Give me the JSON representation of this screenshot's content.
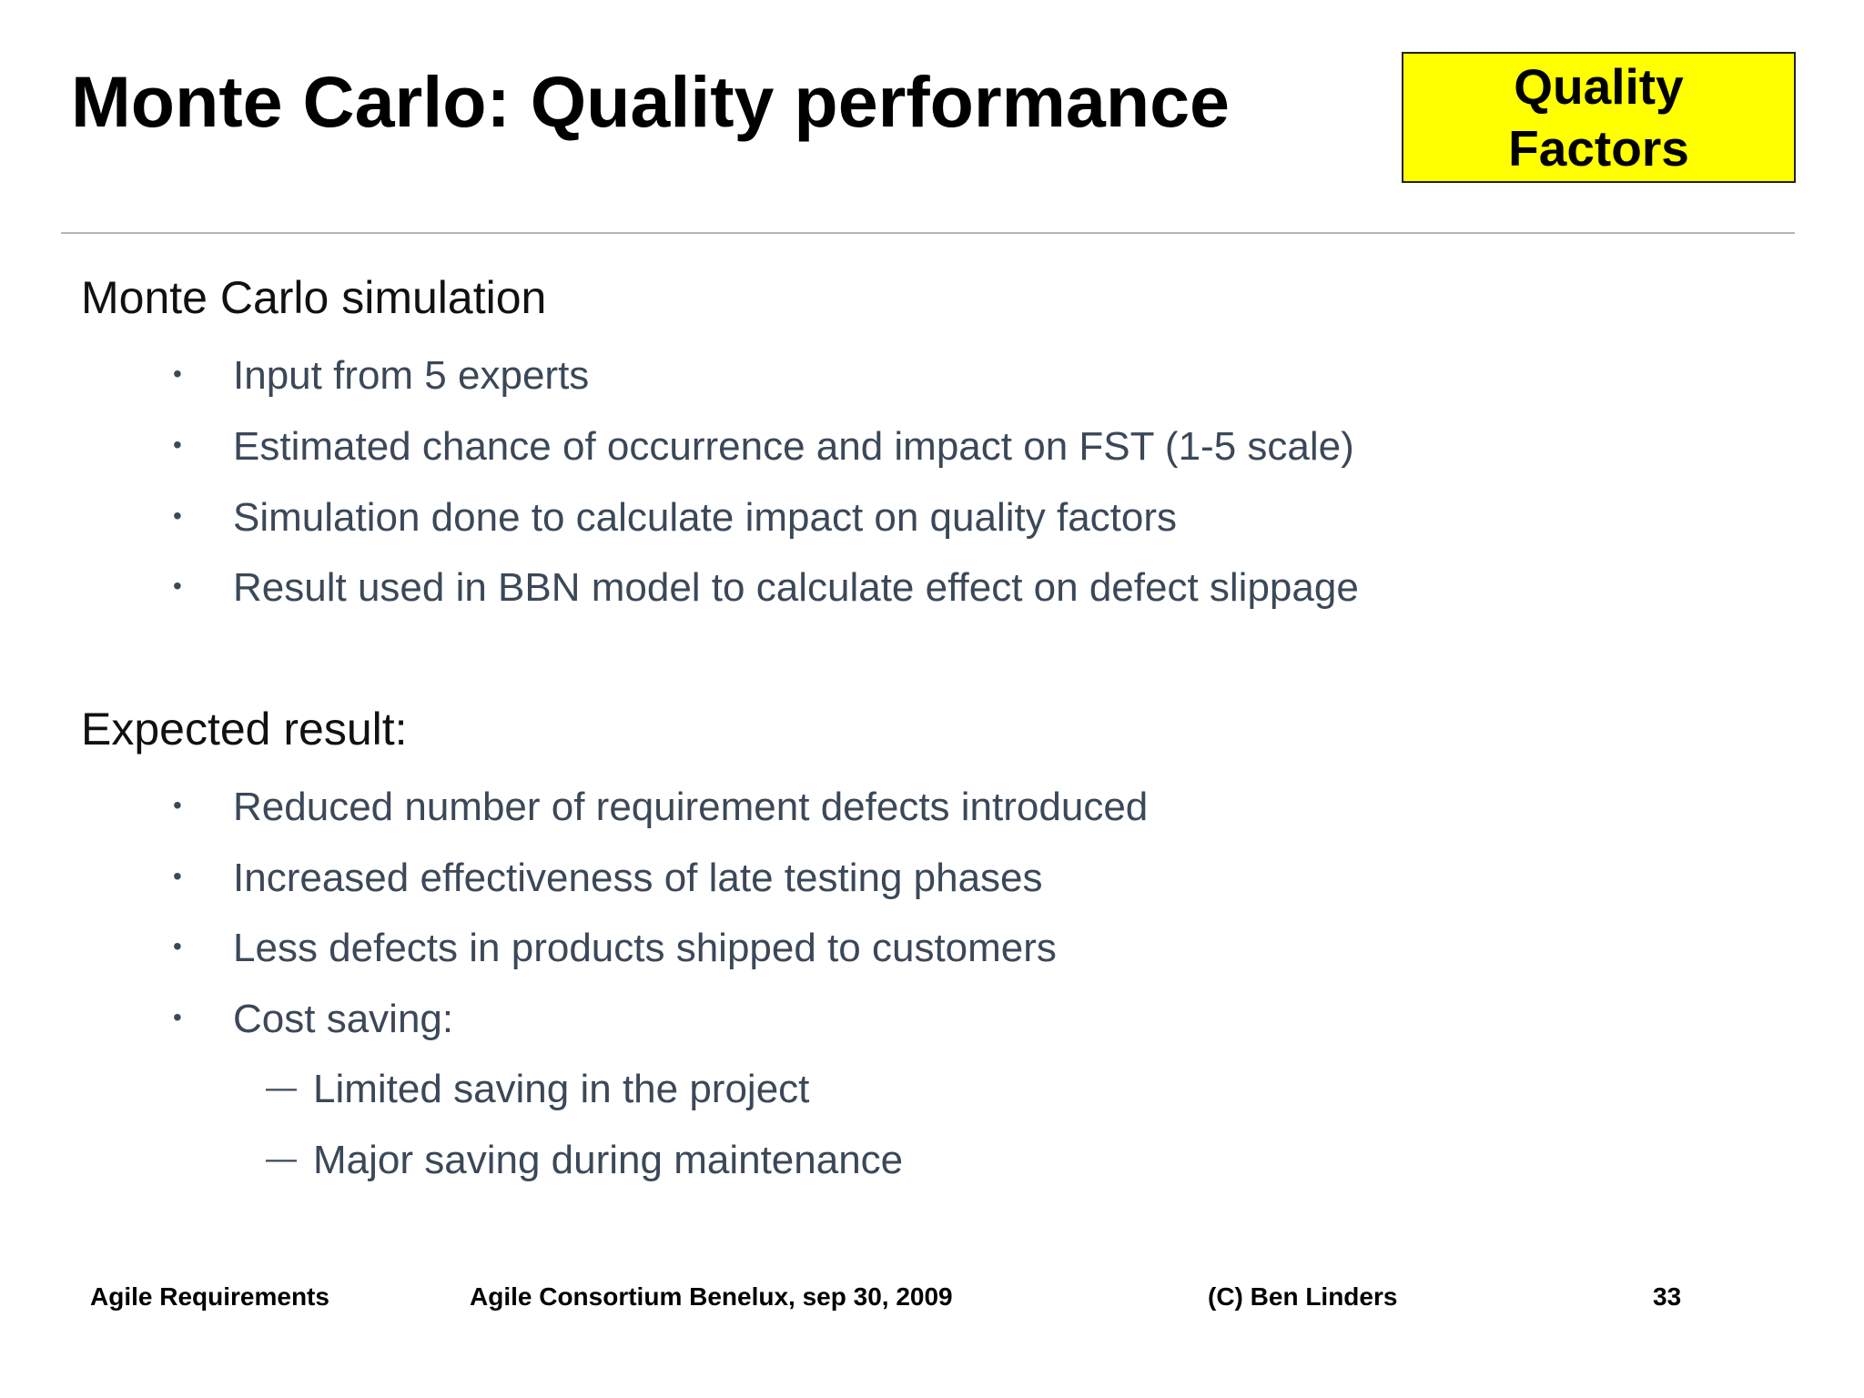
{
  "slide": {
    "title": "Monte Carlo: Quality performance",
    "badge": {
      "line1": "Quality",
      "line2": "Factors",
      "background": "#ffff00"
    },
    "sections": [
      {
        "heading": "Monte Carlo simulation",
        "bullets": [
          "Input from 5 experts",
          "Estimated chance of occurrence  and impact on FST (1-5 scale)",
          "Simulation done to calculate impact on quality factors",
          "Result used in BBN model to calculate effect on defect slippage"
        ]
      },
      {
        "heading": "Expected result:",
        "bullets": [
          "Reduced number of requirement defects introduced",
          "Increased effectiveness of late testing phases",
          "Less defects in products shipped to customers",
          "Cost saving:"
        ],
        "sub_bullets": [
          "Limited saving in the project",
          "Major saving during maintenance"
        ]
      }
    ],
    "bullet_symbol": "•",
    "sub_bullet_symbol": "—",
    "text_color": "#3b4858"
  },
  "footer": {
    "presentation": "Agile Requirements",
    "event": "Agile Consortium Benelux, sep 30, 2009",
    "copyright": "(C) Ben Linders",
    "page_number": "33"
  }
}
